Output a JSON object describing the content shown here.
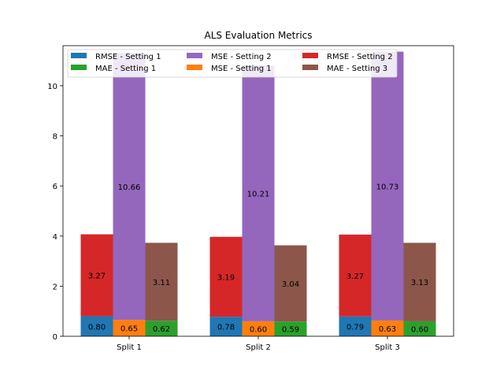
{
  "chart_data": {
    "type": "bar",
    "title": "ALS Evaluation Metrics",
    "xlabel": "",
    "ylabel": "",
    "ylim": [
      0,
      11.6
    ],
    "yticks": [
      0,
      2,
      4,
      6,
      8,
      10
    ],
    "grid": false,
    "legend_position": "top-left",
    "categories": [
      "Split 1",
      "Split 2",
      "Split 3"
    ],
    "series": [
      {
        "name": "RMSE - Setting 1",
        "color": "#1f77b4",
        "group": 0,
        "stack": 0,
        "values": [
          0.8,
          0.78,
          0.79
        ],
        "labels": [
          "0.80",
          "0.78",
          "0.79"
        ]
      },
      {
        "name": "MSE - Setting 1",
        "color": "#ff7f0e",
        "group": 1,
        "stack": 0,
        "values": [
          0.65,
          0.6,
          0.63
        ],
        "labels": [
          "0.65",
          "0.60",
          "0.63"
        ]
      },
      {
        "name": "MAE - Setting 1",
        "color": "#2ca02c",
        "group": 2,
        "stack": 0,
        "values": [
          0.62,
          0.59,
          0.6
        ],
        "labels": [
          "0.62",
          "0.59",
          "0.60"
        ]
      },
      {
        "name": "RMSE - Setting 2",
        "color": "#d62728",
        "group": 0,
        "stack": 1,
        "values": [
          3.27,
          3.19,
          3.27
        ],
        "labels": [
          "3.27",
          "3.19",
          "3.27"
        ]
      },
      {
        "name": "MSE - Setting 2",
        "color": "#9467bd",
        "group": 1,
        "stack": 1,
        "values": [
          10.66,
          10.21,
          10.73
        ],
        "labels": [
          "10.66",
          "10.21",
          "10.73"
        ]
      },
      {
        "name": "MAE - Setting 3",
        "color": "#8c564b",
        "group": 2,
        "stack": 1,
        "values": [
          3.11,
          3.04,
          3.13
        ],
        "labels": [
          "3.11",
          "3.04",
          "3.13"
        ]
      }
    ],
    "legend_order": [
      0,
      2,
      4,
      1,
      3,
      5
    ]
  }
}
